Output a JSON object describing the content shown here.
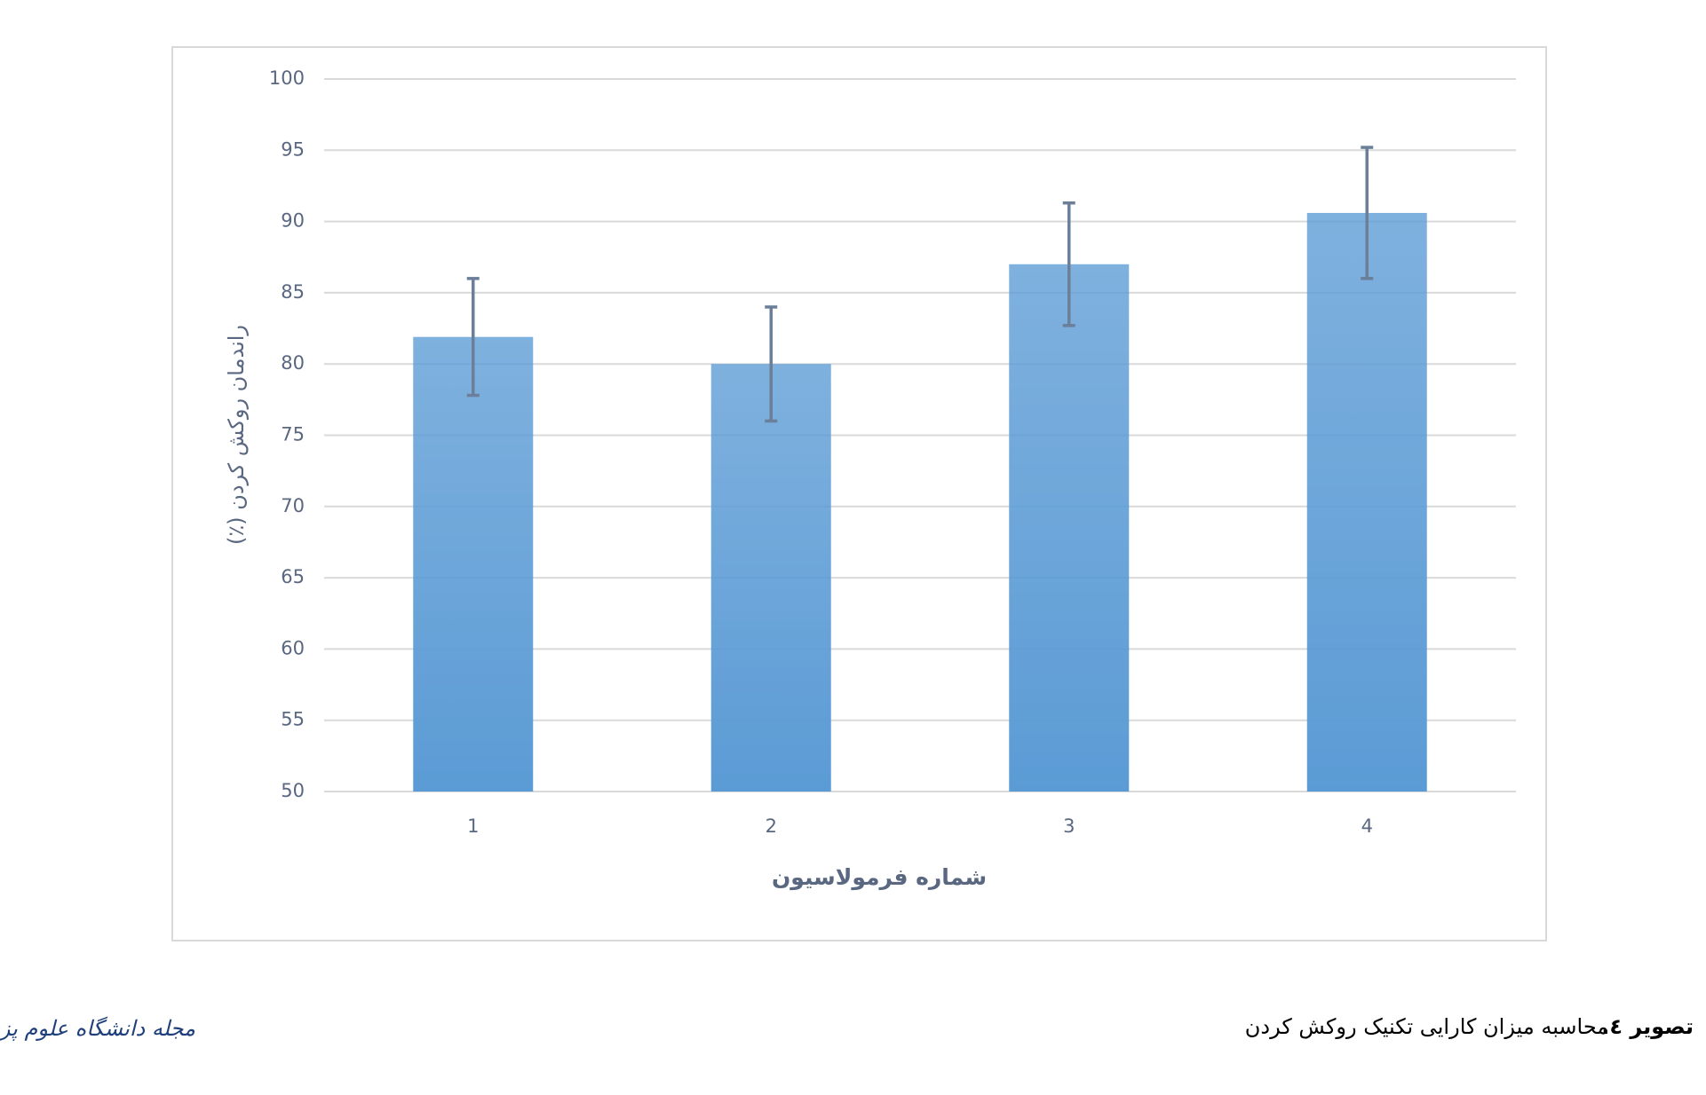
{
  "chart_data": {
    "type": "bar",
    "categories": [
      "1",
      "2",
      "3",
      "4"
    ],
    "values": [
      81.9,
      80,
      87,
      90.6
    ],
    "errors": [
      4.1,
      4,
      4.3,
      4.6
    ],
    "color": "#5b9bd5",
    "error_color": "#6b7f99",
    "ylim": [
      50,
      100
    ],
    "yticks": [
      50,
      55,
      60,
      65,
      70,
      75,
      80,
      85,
      90,
      95,
      100
    ],
    "grid": true,
    "ylabel": "راندمان روکش کردن (٪)",
    "xlabel": "شماره فرمولاسیون"
  },
  "caption": {
    "label": "تصویر ٤.",
    "text": "محاسبه میزان کارایی تکنیک روکش کردن"
  },
  "journal": "مجله دانشگاه علوم پزشکی گیلان"
}
